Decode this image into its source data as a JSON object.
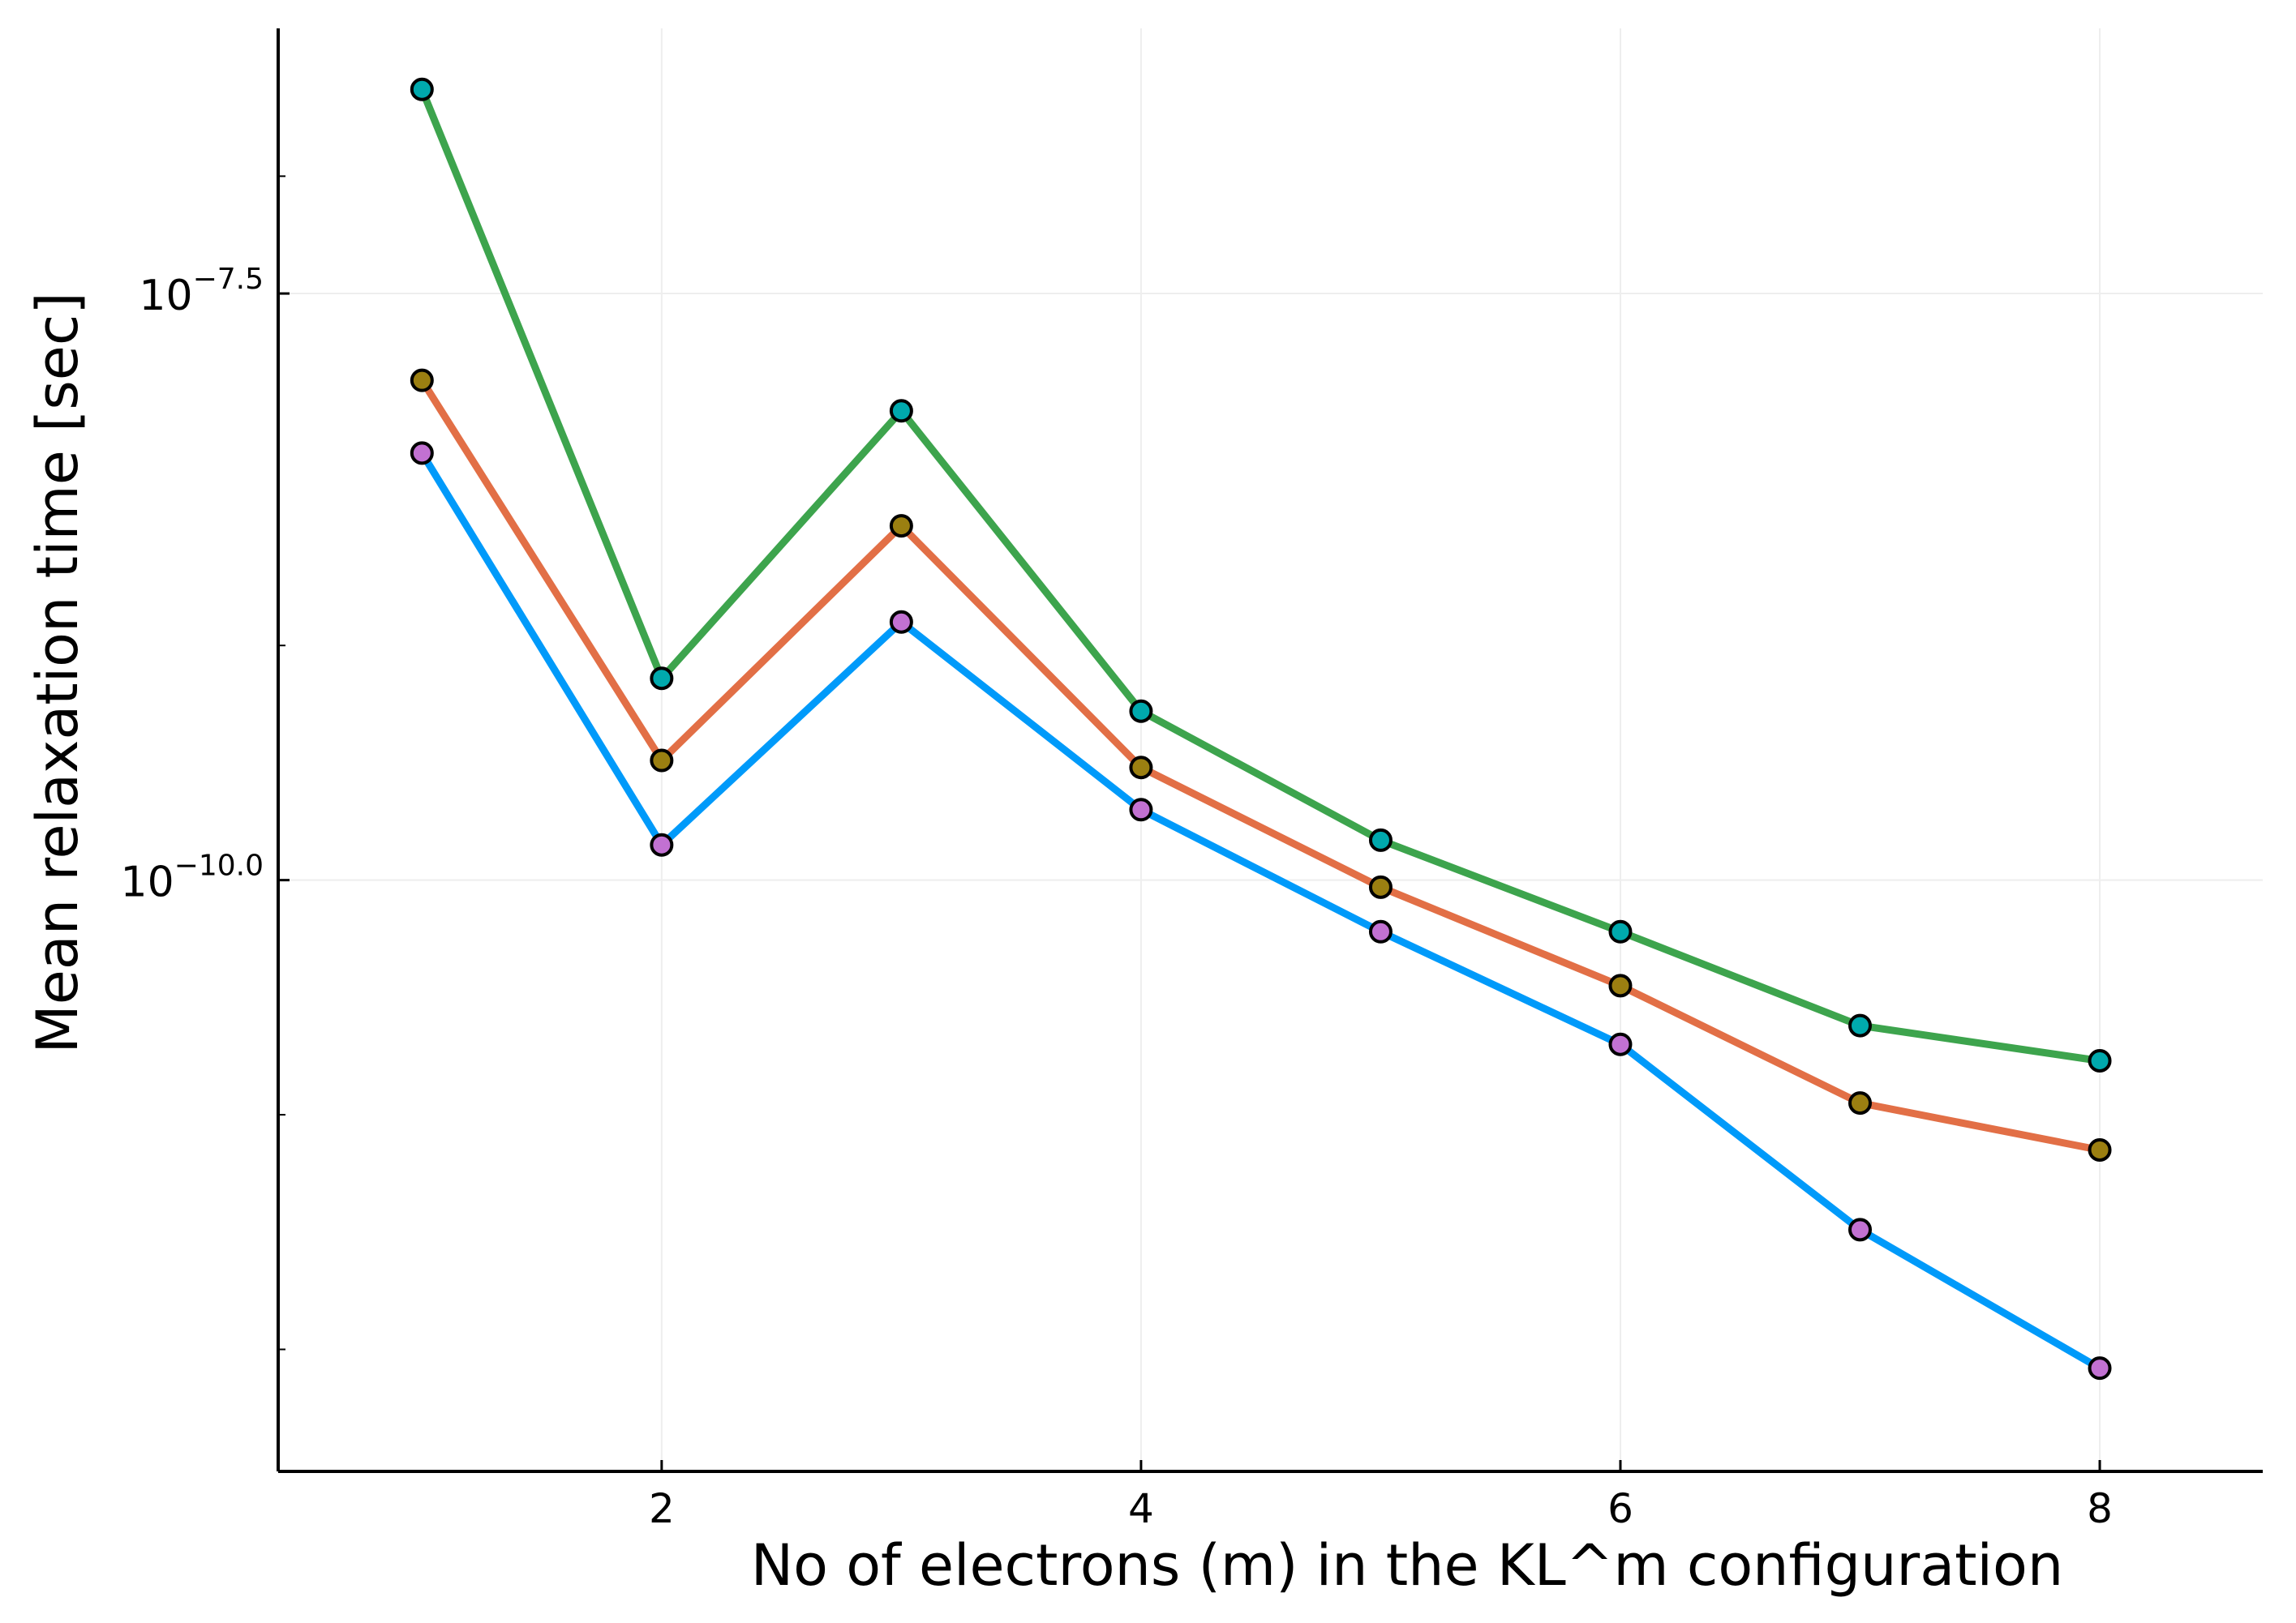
{
  "chart_data": {
    "type": "line",
    "title": "",
    "xlabel": "No of electrons (m) in the KL^m configuration",
    "ylabel": "Mean relaxation time [sec]",
    "y_scale": "log10",
    "x_ticks": [
      2,
      4,
      6,
      8
    ],
    "y_ticks": [
      {
        "exponent": -7.5,
        "base": "10",
        "sup": "−7.5"
      },
      {
        "exponent": -10.0,
        "base": "10",
        "sup": "−10.0"
      }
    ],
    "y_minor_ticks_exponent": [
      -7.0,
      -9.0,
      -11.0,
      -12.0
    ],
    "xlim": [
      0.4,
      8.68
    ],
    "ylim_exponent": [
      -12.52,
      -6.37
    ],
    "grid": true,
    "legend": "none",
    "x": [
      1,
      2,
      3,
      4,
      5,
      6,
      7,
      8
    ],
    "series": [
      {
        "color": "#009AFA",
        "marker_color": "#C271D2",
        "log10_values": [
          -8.18,
          -9.85,
          -8.9,
          -9.7,
          -10.22,
          -10.7,
          -11.49,
          -12.08
        ]
      },
      {
        "color": "#E26F46",
        "marker_color": "#9B7F11",
        "log10_values": [
          -7.87,
          -9.49,
          -8.49,
          -9.52,
          -10.03,
          -10.45,
          -10.95,
          -11.15
        ]
      },
      {
        "color": "#3DA44D",
        "marker_color": "#00A9AD",
        "log10_values": [
          -6.63,
          -9.14,
          -8.0,
          -9.28,
          -9.83,
          -10.22,
          -10.62,
          -10.77
        ]
      }
    ]
  }
}
